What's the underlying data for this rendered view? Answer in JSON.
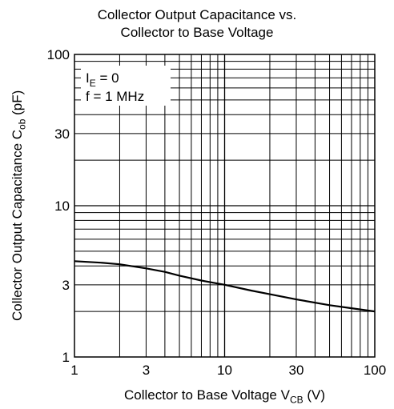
{
  "chart_data": {
    "type": "line",
    "title": [
      "Collector Output Capacitance vs.",
      "Collector to Base Voltage"
    ],
    "xlabel": {
      "main": "Collector to Base Voltage  V",
      "sub": "CB",
      "unit": "  (V)"
    },
    "ylabel": {
      "main": "Collector Output Capacitance  C",
      "sub": "ob",
      "unit": "  (pF)"
    },
    "x_scale": "log",
    "y_scale": "log",
    "xlim": [
      1,
      100
    ],
    "ylim": [
      1,
      100
    ],
    "x_ticks": [
      1,
      3,
      10,
      30,
      100
    ],
    "y_ticks": [
      1,
      3,
      10,
      30,
      100
    ],
    "x_tick_labels": [
      "1",
      "3",
      "10",
      "30",
      "100"
    ],
    "y_tick_labels": [
      "1",
      "3",
      "10",
      "30",
      "100"
    ],
    "grid": true,
    "conditions": [
      {
        "main": "I",
        "sub": "E",
        "rest": " = 0"
      },
      {
        "main": "f = 1 MHz",
        "sub": "",
        "rest": ""
      }
    ],
    "series": [
      {
        "x": [
          1,
          1.5,
          2,
          3,
          4,
          5,
          7,
          10,
          15,
          20,
          30,
          50,
          70,
          100
        ],
        "y": [
          4.3,
          4.2,
          4.1,
          3.85,
          3.65,
          3.45,
          3.2,
          3.0,
          2.75,
          2.6,
          2.4,
          2.2,
          2.1,
          2.0
        ]
      }
    ]
  }
}
